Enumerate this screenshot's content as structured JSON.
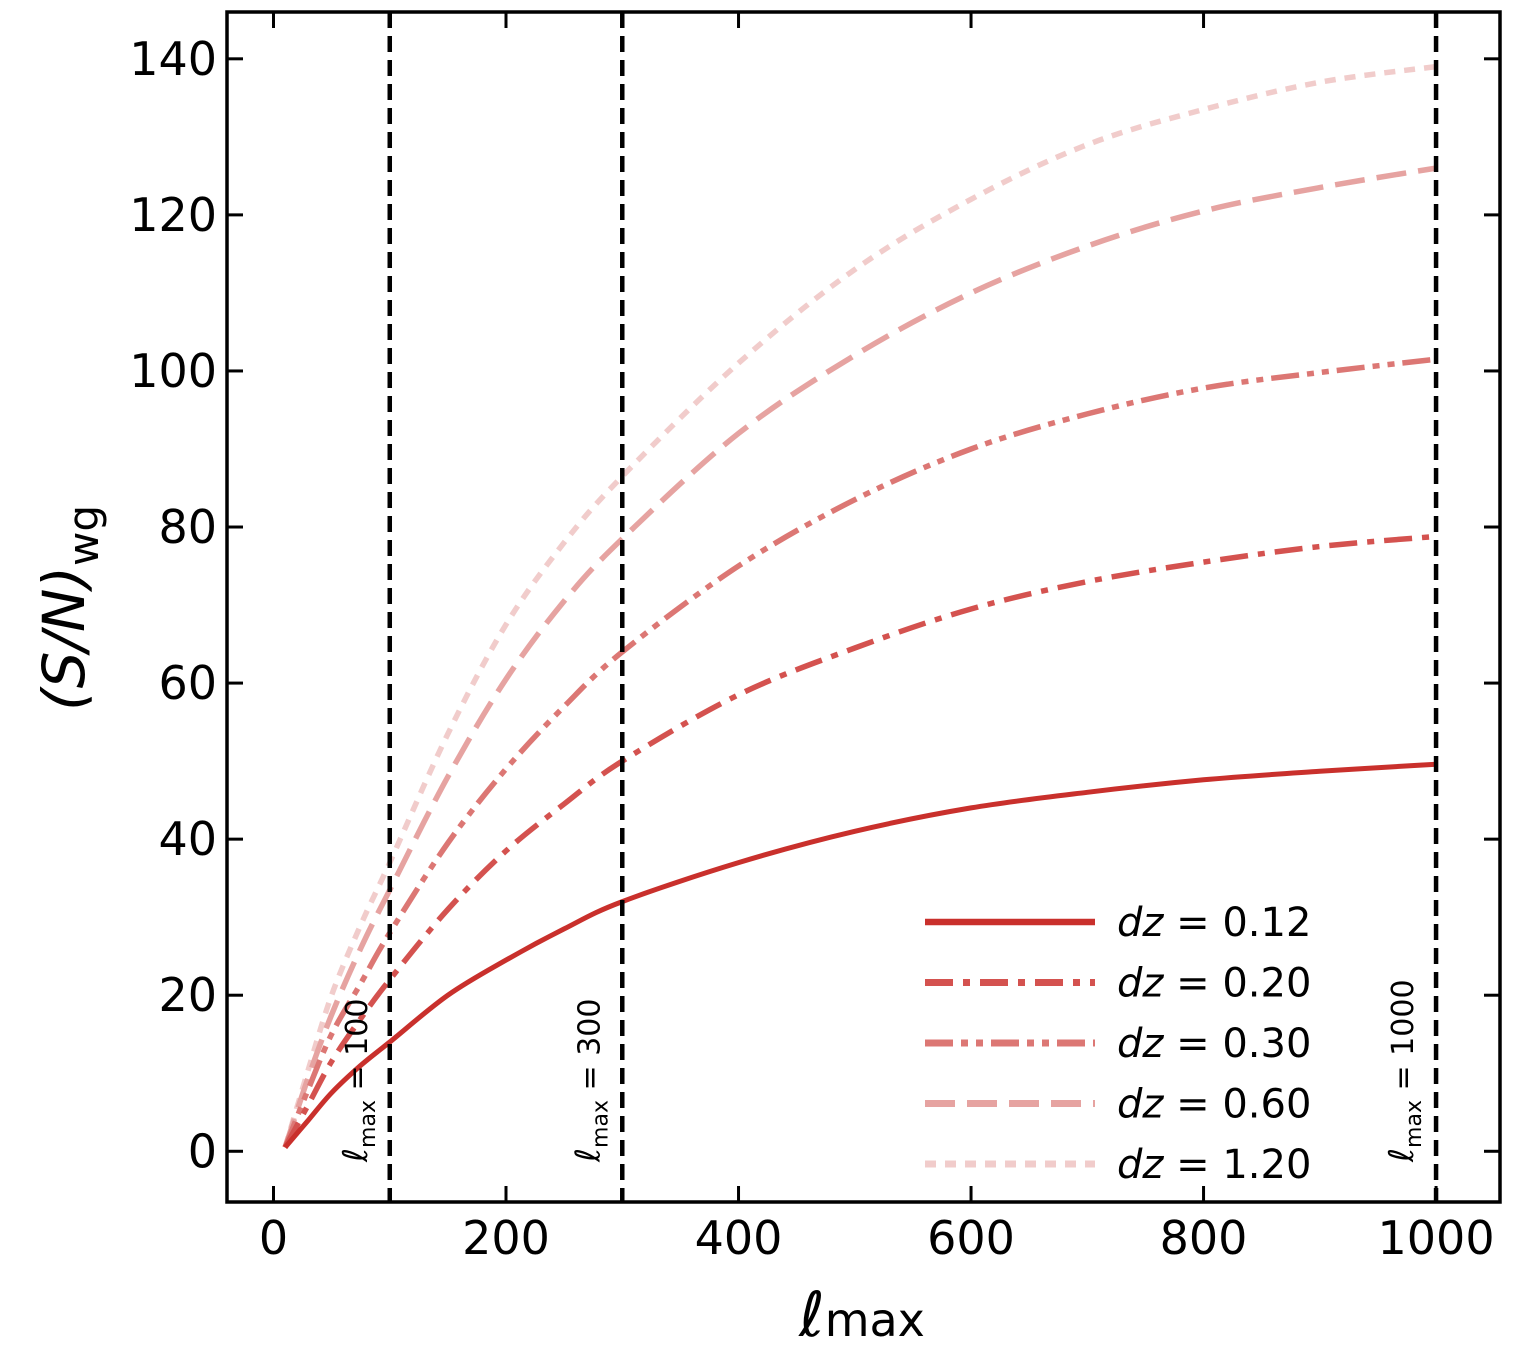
{
  "chart_data": {
    "type": "line",
    "xlabel_main": "ℓ",
    "xlabel_sub": "max",
    "ylabel_main": "(S/N)",
    "ylabel_sub": "wg",
    "xlim": [
      -40,
      1055
    ],
    "ylim": [
      -6.5,
      146
    ],
    "xticks": [
      0,
      200,
      400,
      600,
      800,
      1000
    ],
    "xtick_labels": [
      "0",
      "200",
      "400",
      "600",
      "800",
      "1000"
    ],
    "yticks": [
      0,
      20,
      40,
      60,
      80,
      100,
      120,
      140
    ],
    "ytick_labels": [
      "0",
      "20",
      "40",
      "60",
      "80",
      "100",
      "120",
      "140"
    ],
    "grid": false,
    "legend_position": "lower-right",
    "x": [
      10,
      30,
      50,
      75,
      100,
      150,
      200,
      250,
      300,
      400,
      500,
      600,
      700,
      800,
      900,
      1000
    ],
    "series": [
      {
        "name": "0.12",
        "label_prefix": "dz",
        "label_eq": " = ",
        "color": "#c9302c",
        "dash": "",
        "width": 5,
        "values": [
          0.5,
          4.0,
          7.5,
          11.0,
          14.0,
          20.0,
          24.5,
          28.5,
          32.0,
          37.0,
          41.0,
          44.0,
          46.0,
          47.6,
          48.7,
          49.6
        ]
      },
      {
        "name": "0.20",
        "label_prefix": "dz",
        "label_eq": " = ",
        "color": "#d4524f",
        "dash": "28,10,7,10",
        "width": 5.5,
        "values": [
          0.5,
          6.0,
          11.5,
          17.0,
          22.0,
          31.0,
          38.5,
          44.5,
          50.0,
          58.5,
          64.5,
          69.5,
          73.0,
          75.5,
          77.5,
          78.8
        ]
      },
      {
        "name": "0.30",
        "label_prefix": "dz",
        "label_eq": " = ",
        "color": "#dc7774",
        "dash": "28,8,7,8,7,8",
        "width": 5.5,
        "values": [
          0.5,
          8.0,
          15.0,
          21.5,
          28.0,
          39.5,
          49.0,
          57.0,
          64.0,
          75.0,
          83.5,
          90.0,
          94.5,
          97.8,
          99.8,
          101.5
        ]
      },
      {
        "name": "0.60",
        "label_prefix": "dz",
        "label_eq": " = ",
        "color": "#e6a3a1",
        "dash": "30,12",
        "width": 5.5,
        "values": [
          0.5,
          9.5,
          17.5,
          26.0,
          33.5,
          48.0,
          60.5,
          70.5,
          78.5,
          92.0,
          102.0,
          110.0,
          116.0,
          120.5,
          123.5,
          126.0
        ]
      },
      {
        "name": "1.20",
        "label_prefix": "dz",
        "label_eq": " = ",
        "color": "#f1cccb",
        "dash": "11,9",
        "width": 5.5,
        "values": [
          0.5,
          10.5,
          20.0,
          29.0,
          37.0,
          53.5,
          67.5,
          78.0,
          86.5,
          101.0,
          113.0,
          122.0,
          129.0,
          133.5,
          137.0,
          139.0
        ]
      }
    ],
    "vlines": [
      {
        "x": 100,
        "label_main": "ℓ",
        "label_sub": "max",
        "label_tail": " = 100"
      },
      {
        "x": 300,
        "label_main": "ℓ",
        "label_sub": "max",
        "label_tail": " = 300"
      },
      {
        "x": 1000,
        "label_main": "ℓ",
        "label_sub": "max",
        "label_tail": " = 1000"
      }
    ]
  }
}
